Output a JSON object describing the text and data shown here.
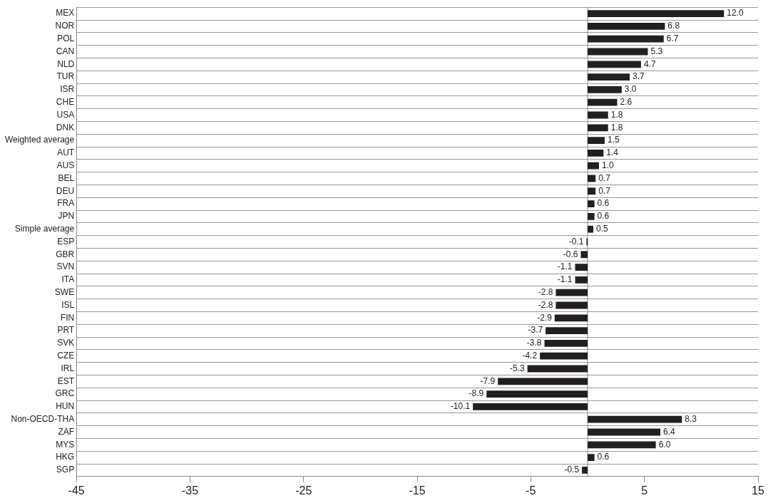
{
  "chart_data": {
    "type": "bar",
    "orientation": "horizontal",
    "categories": [
      "MEX",
      "NOR",
      "POL",
      "CAN",
      "NLD",
      "TUR",
      "ISR",
      "CHE",
      "USA",
      "DNK",
      "Weighted average",
      "AUT",
      "AUS",
      "BEL",
      "DEU",
      "FRA",
      "JPN",
      "Simple average",
      "ESP",
      "GBR",
      "SVN",
      "ITA",
      "SWE",
      "ISL",
      "FIN",
      "PRT",
      "SVK",
      "CZE",
      "IRL",
      "EST",
      "GRC",
      "HUN",
      "Non-OECD-THA",
      "ZAF",
      "MYS",
      "HKG",
      "SGP"
    ],
    "values": [
      12.0,
      6.8,
      6.7,
      5.3,
      4.7,
      3.7,
      3.0,
      2.6,
      1.8,
      1.8,
      1.5,
      1.4,
      1.0,
      0.7,
      0.7,
      0.6,
      0.6,
      0.5,
      -0.1,
      -0.6,
      -1.1,
      -1.1,
      -2.8,
      -2.8,
      -2.9,
      -3.7,
      -3.8,
      -4.2,
      -5.3,
      -7.9,
      -8.9,
      -10.1,
      8.3,
      6.4,
      6.0,
      0.6,
      -0.5
    ],
    "value_labels": [
      "12.0",
      "6.8",
      "6.7",
      "5.3",
      "4.7",
      "3.7",
      "3.0",
      "2.6",
      "1.8",
      "1.8",
      "1.5",
      "1.4",
      "1.0",
      "0.7",
      "0.7",
      "0.6",
      "0.6",
      "0.5",
      "-0.1",
      "-0.6",
      "-1.1",
      "-1.1",
      "-2.8",
      "-2.8",
      "-2.9",
      "-3.7",
      "-3.8",
      "-4.2",
      "-5.3",
      "-7.9",
      "-8.9",
      "-10.1",
      "8.3",
      "6.4",
      "6.0",
      "0.6",
      "-0.5"
    ],
    "color": "#231f20",
    "xlim": [
      -45,
      15
    ],
    "xticks": [
      -45,
      -35,
      -25,
      -15,
      -5,
      5,
      15
    ],
    "ref_lines": [
      {
        "axis": "x",
        "value": 0,
        "color": "#8c8c8c"
      }
    ],
    "grid": "y",
    "legend": false
  }
}
